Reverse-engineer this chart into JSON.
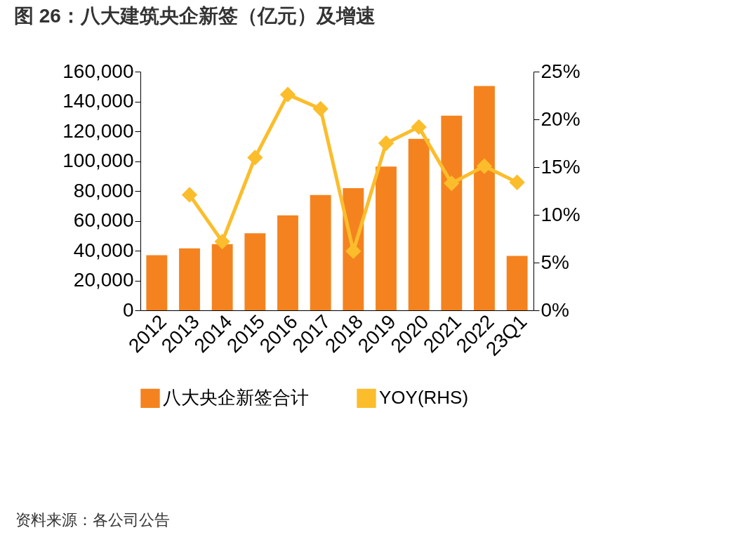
{
  "chart_data": {
    "type": "bar",
    "title": "图 26：八大建筑央企新签（亿元）及增速",
    "categories": [
      "2012",
      "2013",
      "2014",
      "2015",
      "2016",
      "2017",
      "2018",
      "2019",
      "2020",
      "2021",
      "2022",
      "23Q1"
    ],
    "series": [
      {
        "name": "八大央企新签合计",
        "color": "#f4831f",
        "values": [
          37000,
          41500,
          44300,
          51600,
          63700,
          77300,
          81900,
          96300,
          114900,
          130500,
          150300,
          36500
        ]
      },
      {
        "name": "YOY(RHS)",
        "type": "line",
        "axis": "y2",
        "color": "#fbbd2c",
        "marker": "diamond",
        "values": [
          null,
          12.1,
          7.2,
          16.0,
          22.6,
          21.1,
          6.2,
          17.5,
          19.2,
          13.3,
          15.1,
          13.4
        ]
      }
    ],
    "ylim": [
      0,
      160000
    ],
    "yticks": [
      {
        "value": 0,
        "label": "0"
      },
      {
        "value": 20000,
        "label": "20,000"
      },
      {
        "value": 40000,
        "label": "40,000"
      },
      {
        "value": 60000,
        "label": "60,000"
      },
      {
        "value": 80000,
        "label": "80,000"
      },
      {
        "value": 100000,
        "label": "100,000"
      },
      {
        "value": 120000,
        "label": "120,000"
      },
      {
        "value": 140000,
        "label": "140,000"
      },
      {
        "value": 160000,
        "label": "160,000"
      }
    ],
    "y2lim": [
      0,
      25
    ],
    "y2ticks": [
      {
        "value": 0,
        "label": "0%"
      },
      {
        "value": 5,
        "label": "5%"
      },
      {
        "value": 10,
        "label": "10%"
      },
      {
        "value": 15,
        "label": "15%"
      },
      {
        "value": 20,
        "label": "20%"
      },
      {
        "value": 25,
        "label": "25%"
      }
    ],
    "grid": false,
    "legend": "bottom",
    "annotations": [
      "资料来源：各公司公告"
    ]
  }
}
